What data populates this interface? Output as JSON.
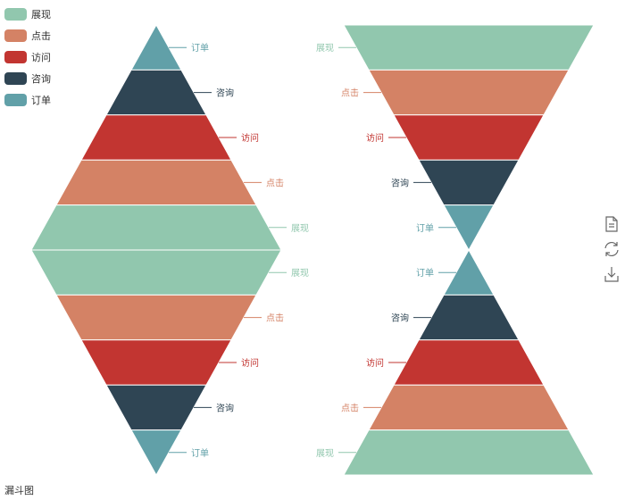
{
  "caption": "漏斗图",
  "legend": {
    "items": [
      {
        "label": "展现",
        "color": "#91c7ae"
      },
      {
        "label": "点击",
        "color": "#d48265"
      },
      {
        "label": "访问",
        "color": "#c23531"
      },
      {
        "label": "咨询",
        "color": "#2f4554"
      },
      {
        "label": "订单",
        "color": "#61a0a8"
      }
    ]
  },
  "toolbox": {
    "icons": [
      "data-view-icon",
      "restore-icon",
      "save-image-icon"
    ]
  },
  "chart_data": [
    {
      "type": "funnel",
      "shape": "pyramid-up",
      "sort": "ascending",
      "label_side": "right",
      "categories": [
        "订单",
        "咨询",
        "访问",
        "点击",
        "展现"
      ],
      "values": [
        20,
        40,
        60,
        80,
        100
      ],
      "colors": [
        "#61a0a8",
        "#2f4554",
        "#c23531",
        "#d48265",
        "#91c7ae"
      ]
    },
    {
      "type": "funnel",
      "shape": "pyramid-down",
      "sort": "descending",
      "label_side": "right",
      "categories": [
        "展现",
        "点击",
        "访问",
        "咨询",
        "订单"
      ],
      "values": [
        100,
        80,
        60,
        40,
        20
      ],
      "colors": [
        "#91c7ae",
        "#d48265",
        "#c23531",
        "#2f4554",
        "#61a0a8"
      ]
    },
    {
      "type": "funnel",
      "shape": "funnel-down",
      "sort": "descending",
      "label_side": "left",
      "categories": [
        "展现",
        "点击",
        "访问",
        "咨询",
        "订单"
      ],
      "values": [
        100,
        80,
        60,
        40,
        20
      ],
      "colors": [
        "#91c7ae",
        "#d48265",
        "#c23531",
        "#2f4554",
        "#61a0a8"
      ]
    },
    {
      "type": "funnel",
      "shape": "funnel-up",
      "sort": "ascending",
      "label_side": "left",
      "categories": [
        "订单",
        "咨询",
        "访问",
        "点击",
        "展现"
      ],
      "values": [
        20,
        40,
        60,
        80,
        100
      ],
      "colors": [
        "#61a0a8",
        "#2f4554",
        "#c23531",
        "#d48265",
        "#91c7ae"
      ]
    }
  ]
}
